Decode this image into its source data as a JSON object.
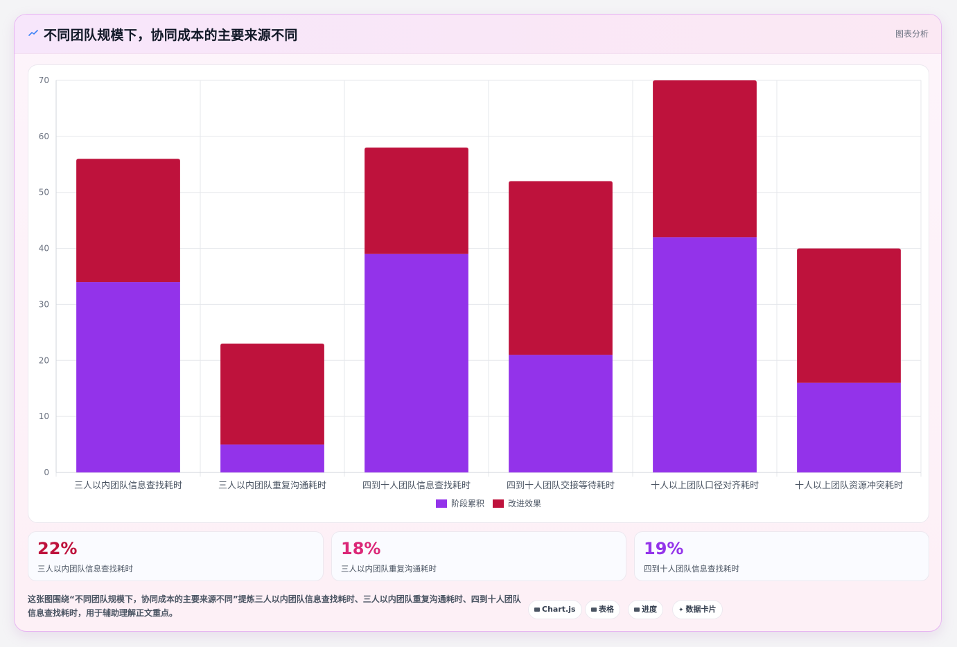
{
  "header": {
    "title": "不同团队规模下，协同成本的主要来源不同",
    "tag": "图表分析",
    "icon": "trend-line-icon"
  },
  "colors": {
    "series_a": "#9333ea",
    "series_b": "#be123c",
    "stat_1": "#be123c",
    "stat_2": "#db2777",
    "stat_3": "#9333ea"
  },
  "chart_data": {
    "type": "bar",
    "stacked": true,
    "categories": [
      "三人以内团队信息查找耗时",
      "三人以内团队重复沟通耗时",
      "四到十人团队信息查找耗时",
      "四到十人团队交接等待耗时",
      "十人以上团队口径对齐耗时",
      "十人以上团队资源冲突耗时"
    ],
    "series": [
      {
        "name": "阶段累积",
        "color": "#9333ea",
        "values": [
          34,
          5,
          39,
          21,
          42,
          16
        ]
      },
      {
        "name": "改进效果",
        "color": "#be123c",
        "values": [
          22,
          18,
          19,
          31,
          28,
          24
        ]
      }
    ],
    "ylim": [
      0,
      70
    ],
    "yticks": [
      0,
      10,
      20,
      30,
      40,
      50,
      60,
      70
    ],
    "grid": true,
    "legend": "bottom"
  },
  "stats": [
    {
      "value": "22%",
      "label": "三人以内团队信息查找耗时"
    },
    {
      "value": "18%",
      "label": "三人以内团队重复沟通耗时"
    },
    {
      "value": "19%",
      "label": "四到十人团队信息查找耗时"
    }
  ],
  "footer": {
    "text": "这张图围绕“不同团队规模下，协同成本的主要来源不同”提炼三人以内团队信息查找耗时、三人以内团队重复沟通耗时、四到十人团队信息查找耗时，用于辅助理解正文重点。",
    "chips": [
      {
        "label": "Chart.js",
        "icon": "chart-icon"
      },
      {
        "label": "表格",
        "icon": "table-icon"
      },
      {
        "label": "进度",
        "icon": "progress-icon"
      },
      {
        "label": "数据卡片",
        "icon": "sparkle-icon"
      }
    ]
  }
}
